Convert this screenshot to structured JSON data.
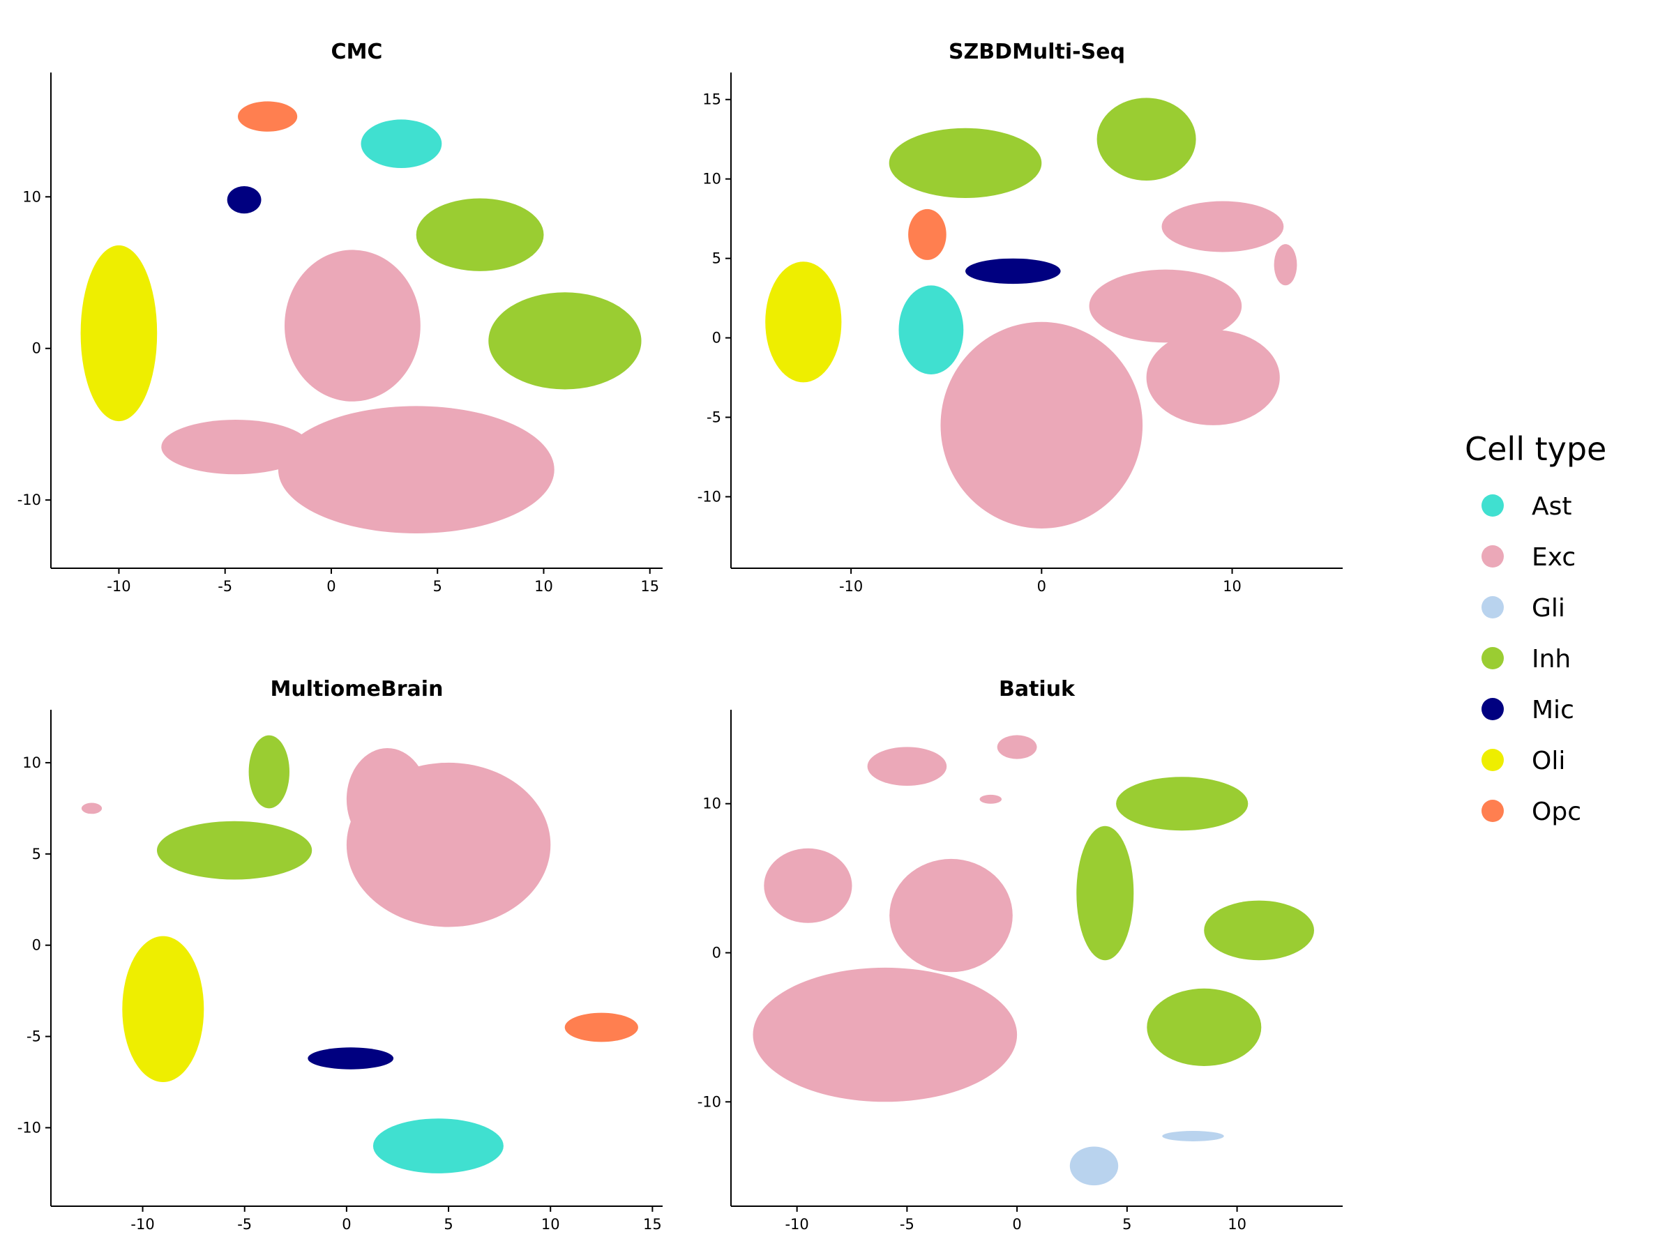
{
  "legend": {
    "title": "Cell type",
    "items": [
      {
        "label": "Ast",
        "color": "#40E0D0"
      },
      {
        "label": "Exc",
        "color": "#EBA8B8"
      },
      {
        "label": "Gli",
        "color": "#B9D3EE"
      },
      {
        "label": "Inh",
        "color": "#9ACD32"
      },
      {
        "label": "Mic",
        "color": "#000080"
      },
      {
        "label": "Oli",
        "color": "#EEEE00"
      },
      {
        "label": "Opc",
        "color": "#FF7F50"
      }
    ]
  },
  "chart_data": [
    {
      "type": "scatter",
      "title": "CMC",
      "xlim": [
        -13.2,
        15.6
      ],
      "ylim": [
        -14.5,
        18.2
      ],
      "xticks": [
        -10,
        -5,
        0,
        5,
        10,
        15
      ],
      "yticks": [
        -10,
        0,
        10
      ],
      "clusters": [
        {
          "type": "Oli",
          "x": -10,
          "y": 1,
          "rx": 1.8,
          "ry": 5.8
        },
        {
          "type": "Opc",
          "x": -3,
          "y": 15.3,
          "rx": 1.4,
          "ry": 1.0
        },
        {
          "type": "Mic",
          "x": -4.1,
          "y": 9.8,
          "rx": 0.8,
          "ry": 0.9
        },
        {
          "type": "Ast",
          "x": 3.3,
          "y": 13.5,
          "rx": 1.9,
          "ry": 1.6
        },
        {
          "type": "Inh",
          "x": 7,
          "y": 7.5,
          "rx": 3.0,
          "ry": 2.4
        },
        {
          "type": "Inh",
          "x": 11,
          "y": 0.5,
          "rx": 3.6,
          "ry": 3.2
        },
        {
          "type": "Exc",
          "x": 1,
          "y": 1.5,
          "rx": 3.2,
          "ry": 5.0
        },
        {
          "type": "Exc",
          "x": 4,
          "y": -8,
          "rx": 6.5,
          "ry": 4.2
        },
        {
          "type": "Exc",
          "x": -4.5,
          "y": -6.5,
          "rx": 3.5,
          "ry": 1.8
        }
      ]
    },
    {
      "type": "scatter",
      "title": "SZBDMulti-Seq",
      "xlim": [
        -16.3,
        15.8
      ],
      "ylim": [
        -14.5,
        16.7
      ],
      "xticks": [
        -10,
        0,
        10
      ],
      "yticks": [
        -10,
        -5,
        0,
        5,
        10,
        15
      ],
      "clusters": [
        {
          "type": "Oli",
          "x": -12.5,
          "y": 1,
          "rx": 2.0,
          "ry": 3.8
        },
        {
          "type": "Opc",
          "x": -6,
          "y": 6.5,
          "rx": 1.0,
          "ry": 1.6
        },
        {
          "type": "Mic",
          "x": -1.5,
          "y": 4.2,
          "rx": 2.5,
          "ry": 0.8
        },
        {
          "type": "Ast",
          "x": -5.8,
          "y": 0.5,
          "rx": 1.7,
          "ry": 2.8
        },
        {
          "type": "Inh",
          "x": -4,
          "y": 11,
          "rx": 4.0,
          "ry": 2.2
        },
        {
          "type": "Inh",
          "x": 5.5,
          "y": 12.5,
          "rx": 2.6,
          "ry": 2.6
        },
        {
          "type": "Exc",
          "x": 0,
          "y": -5.5,
          "rx": 5.3,
          "ry": 6.5
        },
        {
          "type": "Exc",
          "x": 6.5,
          "y": 2,
          "rx": 4.0,
          "ry": 2.3
        },
        {
          "type": "Exc",
          "x": 9,
          "y": -2.5,
          "rx": 3.5,
          "ry": 3.0
        },
        {
          "type": "Exc",
          "x": 9.5,
          "y": 7,
          "rx": 3.2,
          "ry": 1.6
        },
        {
          "type": "Exc",
          "x": 12.8,
          "y": 4.6,
          "rx": 0.6,
          "ry": 1.3
        }
      ]
    },
    {
      "type": "scatter",
      "title": "MultiomeBrain",
      "xlim": [
        -14.5,
        15.5
      ],
      "ylim": [
        -14.3,
        12.9
      ],
      "xticks": [
        -10,
        -5,
        0,
        5,
        10,
        15
      ],
      "yticks": [
        -10,
        -5,
        0,
        5,
        10
      ],
      "clusters": [
        {
          "type": "Oli",
          "x": -9,
          "y": -3.5,
          "rx": 2.0,
          "ry": 4.0
        },
        {
          "type": "Mic",
          "x": 0.2,
          "y": -6.2,
          "rx": 2.1,
          "ry": 0.6
        },
        {
          "type": "Ast",
          "x": 4.5,
          "y": -11,
          "rx": 3.2,
          "ry": 1.5
        },
        {
          "type": "Opc",
          "x": 12.5,
          "y": -4.5,
          "rx": 1.8,
          "ry": 0.8
        },
        {
          "type": "Inh",
          "x": -3.8,
          "y": 9.5,
          "rx": 1.0,
          "ry": 2.0
        },
        {
          "type": "Inh",
          "x": -5.5,
          "y": 5.2,
          "rx": 3.8,
          "ry": 1.6
        },
        {
          "type": "Exc",
          "x": 5,
          "y": 5.5,
          "rx": 5.0,
          "ry": 4.5
        },
        {
          "type": "Exc",
          "x": 2,
          "y": 8,
          "rx": 2.0,
          "ry": 2.8
        },
        {
          "type": "Exc",
          "x": -12.5,
          "y": 7.5,
          "rx": 0.5,
          "ry": 0.3
        }
      ]
    },
    {
      "type": "scatter",
      "title": "Batiuk",
      "xlim": [
        -13,
        14.8
      ],
      "ylim": [
        -17,
        16.3
      ],
      "xticks": [
        -10,
        -5,
        0,
        5,
        10
      ],
      "yticks": [
        -10,
        0,
        10
      ],
      "clusters": [
        {
          "type": "Exc",
          "x": -6,
          "y": -5.5,
          "rx": 6.0,
          "ry": 4.5
        },
        {
          "type": "Exc",
          "x": -3,
          "y": 2.5,
          "rx": 2.8,
          "ry": 3.8
        },
        {
          "type": "Exc",
          "x": -9.5,
          "y": 4.5,
          "rx": 2.0,
          "ry": 2.5
        },
        {
          "type": "Exc",
          "x": -5,
          "y": 12.5,
          "rx": 1.8,
          "ry": 1.3
        },
        {
          "type": "Exc",
          "x": 0,
          "y": 13.8,
          "rx": 0.9,
          "ry": 0.8
        },
        {
          "type": "Exc",
          "x": -1.2,
          "y": 10.3,
          "rx": 0.5,
          "ry": 0.3
        },
        {
          "type": "Inh",
          "x": 7.5,
          "y": 10,
          "rx": 3.0,
          "ry": 1.8
        },
        {
          "type": "Inh",
          "x": 4,
          "y": 4,
          "rx": 1.3,
          "ry": 4.5
        },
        {
          "type": "Inh",
          "x": 11,
          "y": 1.5,
          "rx": 2.5,
          "ry": 2.0
        },
        {
          "type": "Inh",
          "x": 8.5,
          "y": -5,
          "rx": 2.6,
          "ry": 2.6
        },
        {
          "type": "Gli",
          "x": 3.5,
          "y": -14.3,
          "rx": 1.1,
          "ry": 1.3
        },
        {
          "type": "Gli",
          "x": 8,
          "y": -12.3,
          "rx": 1.4,
          "ry": 0.35
        }
      ]
    }
  ]
}
